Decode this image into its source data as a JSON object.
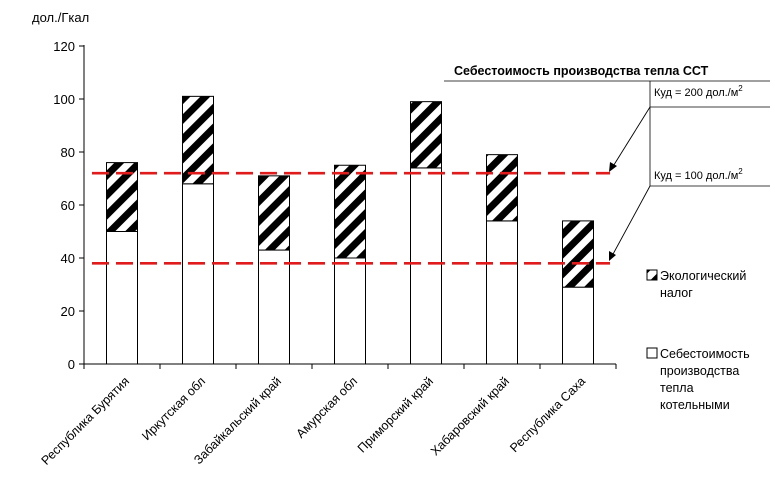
{
  "chart_data": {
    "type": "bar",
    "stacked": true,
    "ylabel": "дол./Гкал",
    "ylim": [
      0,
      120
    ],
    "yticks": [
      0,
      20,
      40,
      60,
      80,
      100,
      120
    ],
    "categories": [
      "Республика Бурятия",
      "Иркутская обл",
      "Забайкальский край",
      "Амурская обл",
      "Приморский край",
      "Хабаровский край",
      "Республика Саха"
    ],
    "series": [
      {
        "name": "Себестоимость производства тепла котельными",
        "values": [
          50,
          68,
          43,
          40,
          74,
          54,
          29
        ],
        "fill": "#ffffff"
      },
      {
        "name": "Экологический налог",
        "values": [
          26,
          33,
          28,
          35,
          25,
          25,
          25
        ],
        "fill": "hatched"
      }
    ],
    "reference_lines": [
      {
        "y": 72,
        "label": "Куд = 200 дол./м",
        "sup": "2",
        "color": "#e11b1b"
      },
      {
        "y": 38,
        "label": "Куд = 100 дол./м",
        "sup": "2",
        "color": "#e11b1b"
      }
    ],
    "annotation_title": "Себестоимость производства тепла ССТ",
    "legend": {
      "position": "right",
      "items": [
        {
          "lines": [
            "Экологический",
            "налог"
          ],
          "swatch": "hatched"
        },
        {
          "lines": [
            "Себестоимость",
            "производства",
            "тепла",
            "котельными"
          ],
          "swatch": "empty"
        }
      ]
    }
  }
}
